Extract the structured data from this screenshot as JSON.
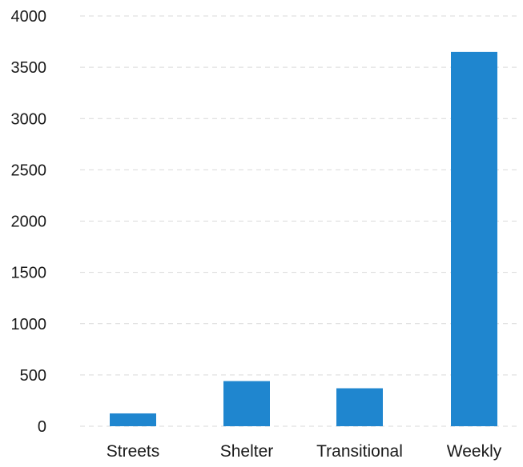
{
  "chart_data": {
    "type": "bar",
    "title": "",
    "xlabel": "",
    "ylabel": "",
    "categories": [
      "Streets",
      "Shelter",
      "Transitional",
      "Weekly"
    ],
    "values": [
      125,
      440,
      370,
      3650
    ],
    "ylim": [
      0,
      4000
    ],
    "yticks": [
      0,
      500,
      1000,
      1500,
      2000,
      2500,
      3000,
      3500,
      4000
    ],
    "ytick_labels": [
      "0",
      "500",
      "1000",
      "1500",
      "2000",
      "2500",
      "3000",
      "3500",
      "4000"
    ],
    "grid": true,
    "legend": "none",
    "bar_color": "#1f86cf"
  }
}
